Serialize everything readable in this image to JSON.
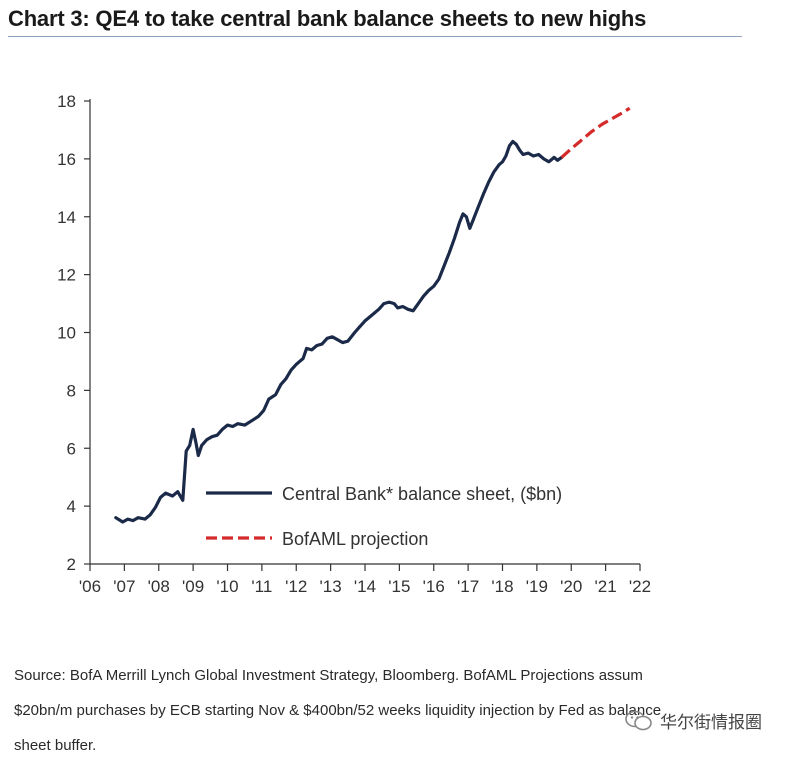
{
  "title": "Chart 3: QE4 to take central bank balance sheets to new highs",
  "source_lines": [
    "Source: BofA Merrill Lynch Global Investment Strategy, Bloomberg. BofAML Projections assum",
    "$20bn/m purchases by ECB starting Nov & $400bn/52 weeks liquidity injection by Fed as balance",
    "sheet buffer."
  ],
  "watermark": {
    "text": "华尔街情报圈",
    "icon": "wechat-logo-icon"
  },
  "chart_data": {
    "type": "line",
    "title": "Chart 3: QE4 to take central bank balance sheets to new highs",
    "xlabel": "",
    "ylabel": "",
    "xlim": [
      2006,
      2022
    ],
    "ylim": [
      2,
      18
    ],
    "yticks": [
      2,
      4,
      6,
      8,
      10,
      12,
      14,
      16,
      18
    ],
    "xticks": [
      {
        "value": 2006,
        "label": "'06"
      },
      {
        "value": 2007,
        "label": "'07"
      },
      {
        "value": 2008,
        "label": "'08"
      },
      {
        "value": 2009,
        "label": "'09"
      },
      {
        "value": 2010,
        "label": "'10"
      },
      {
        "value": 2011,
        "label": "'11"
      },
      {
        "value": 2012,
        "label": "'12"
      },
      {
        "value": 2013,
        "label": "'13"
      },
      {
        "value": 2014,
        "label": "'14"
      },
      {
        "value": 2015,
        "label": "'15"
      },
      {
        "value": 2016,
        "label": "'16"
      },
      {
        "value": 2017,
        "label": "'17"
      },
      {
        "value": 2018,
        "label": "'18"
      },
      {
        "value": 2019,
        "label": "'19"
      },
      {
        "value": 2020,
        "label": "'20"
      },
      {
        "value": 2021,
        "label": "'21"
      },
      {
        "value": 2022,
        "label": "'22"
      }
    ],
    "grid": false,
    "legend_position": "lower-right",
    "series": [
      {
        "name": "Central Bank* balance sheet, ($bn)",
        "color": "#1b2a48",
        "dash": false,
        "points": [
          [
            2006.75,
            3.6
          ],
          [
            2006.95,
            3.45
          ],
          [
            2007.1,
            3.55
          ],
          [
            2007.25,
            3.5
          ],
          [
            2007.4,
            3.6
          ],
          [
            2007.6,
            3.55
          ],
          [
            2007.75,
            3.7
          ],
          [
            2007.9,
            3.95
          ],
          [
            2008.05,
            4.3
          ],
          [
            2008.2,
            4.45
          ],
          [
            2008.4,
            4.35
          ],
          [
            2008.55,
            4.5
          ],
          [
            2008.7,
            4.2
          ],
          [
            2008.8,
            5.9
          ],
          [
            2008.9,
            6.1
          ],
          [
            2009.0,
            6.65
          ],
          [
            2009.08,
            6.2
          ],
          [
            2009.15,
            5.75
          ],
          [
            2009.25,
            6.1
          ],
          [
            2009.4,
            6.3
          ],
          [
            2009.55,
            6.4
          ],
          [
            2009.7,
            6.45
          ],
          [
            2009.85,
            6.65
          ],
          [
            2010.0,
            6.8
          ],
          [
            2010.15,
            6.75
          ],
          [
            2010.3,
            6.85
          ],
          [
            2010.5,
            6.8
          ],
          [
            2010.7,
            6.95
          ],
          [
            2010.9,
            7.1
          ],
          [
            2011.05,
            7.3
          ],
          [
            2011.2,
            7.7
          ],
          [
            2011.4,
            7.85
          ],
          [
            2011.55,
            8.2
          ],
          [
            2011.7,
            8.4
          ],
          [
            2011.85,
            8.7
          ],
          [
            2012.0,
            8.9
          ],
          [
            2012.2,
            9.1
          ],
          [
            2012.3,
            9.45
          ],
          [
            2012.45,
            9.4
          ],
          [
            2012.6,
            9.55
          ],
          [
            2012.75,
            9.6
          ],
          [
            2012.9,
            9.8
          ],
          [
            2013.05,
            9.85
          ],
          [
            2013.2,
            9.75
          ],
          [
            2013.35,
            9.65
          ],
          [
            2013.5,
            9.7
          ],
          [
            2013.7,
            10.0
          ],
          [
            2013.85,
            10.2
          ],
          [
            2014.0,
            10.4
          ],
          [
            2014.2,
            10.6
          ],
          [
            2014.4,
            10.8
          ],
          [
            2014.55,
            11.0
          ],
          [
            2014.7,
            11.05
          ],
          [
            2014.85,
            11.0
          ],
          [
            2014.95,
            10.85
          ],
          [
            2015.1,
            10.9
          ],
          [
            2015.25,
            10.8
          ],
          [
            2015.4,
            10.75
          ],
          [
            2015.55,
            11.0
          ],
          [
            2015.7,
            11.25
          ],
          [
            2015.85,
            11.45
          ],
          [
            2016.0,
            11.6
          ],
          [
            2016.15,
            11.85
          ],
          [
            2016.3,
            12.3
          ],
          [
            2016.45,
            12.75
          ],
          [
            2016.6,
            13.25
          ],
          [
            2016.75,
            13.8
          ],
          [
            2016.85,
            14.1
          ],
          [
            2016.95,
            14.0
          ],
          [
            2017.05,
            13.6
          ],
          [
            2017.15,
            13.9
          ],
          [
            2017.3,
            14.35
          ],
          [
            2017.45,
            14.8
          ],
          [
            2017.6,
            15.2
          ],
          [
            2017.75,
            15.55
          ],
          [
            2017.9,
            15.8
          ],
          [
            2018.0,
            15.9
          ],
          [
            2018.1,
            16.1
          ],
          [
            2018.2,
            16.45
          ],
          [
            2018.3,
            16.6
          ],
          [
            2018.4,
            16.5
          ],
          [
            2018.5,
            16.3
          ],
          [
            2018.6,
            16.15
          ],
          [
            2018.75,
            16.2
          ],
          [
            2018.9,
            16.1
          ],
          [
            2019.05,
            16.15
          ],
          [
            2019.2,
            16.0
          ],
          [
            2019.35,
            15.9
          ],
          [
            2019.5,
            16.05
          ],
          [
            2019.6,
            15.95
          ],
          [
            2019.72,
            16.05
          ]
        ]
      },
      {
        "name": "BofAML projection",
        "color": "#d42a2a",
        "dash": true,
        "points": [
          [
            2019.72,
            16.05
          ],
          [
            2020.0,
            16.35
          ],
          [
            2020.3,
            16.65
          ],
          [
            2020.6,
            16.95
          ],
          [
            2020.9,
            17.2
          ],
          [
            2021.2,
            17.4
          ],
          [
            2021.5,
            17.6
          ],
          [
            2021.7,
            17.75
          ]
        ]
      }
    ]
  }
}
